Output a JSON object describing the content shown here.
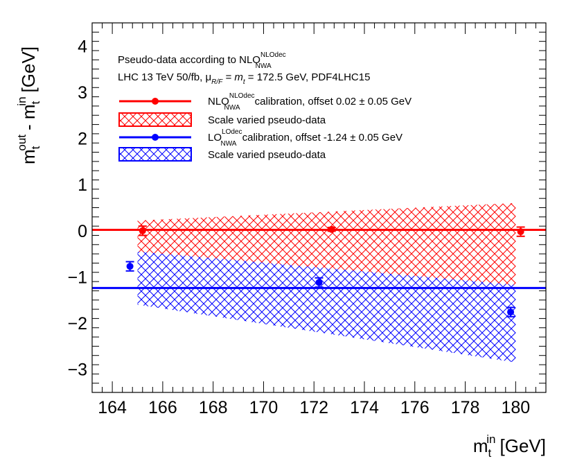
{
  "chart_data": {
    "type": "scatter",
    "title": "",
    "xlabel": {
      "main": "m",
      "sub": "t",
      "sup": "in",
      "unit": "[GeV]"
    },
    "ylabel": {
      "main": "m",
      "sub1": "t",
      "sup1": "out",
      "mid": "- m",
      "sub2": "t",
      "sup2": "in",
      "unit": "[GeV]"
    },
    "xlim": [
      163.2,
      181.2
    ],
    "ylim": [
      -3.5,
      4.5
    ],
    "x_ticks": [
      164,
      166,
      168,
      170,
      172,
      174,
      176,
      178,
      180
    ],
    "y_ticks": [
      -3,
      -2,
      -1,
      0,
      1,
      2,
      3,
      4
    ],
    "x_tick_labels": [
      "164",
      "166",
      "168",
      "170",
      "172",
      "174",
      "176",
      "178",
      "180"
    ],
    "y_tick_labels": [
      "−3",
      "−2",
      "−1",
      "0",
      "1",
      "2",
      "3",
      "4"
    ],
    "header": {
      "line1": "Pseudo-data according to NLO",
      "line1_sup": "NLOdec",
      "line1_sub": "NWA",
      "line2_a": "LHC 13 TeV 50/fb, μ",
      "line2_sub": "R/F",
      "line2_b": " = m",
      "line2_b_sub": "t",
      "line2_c": " = 172.5 GeV, PDF4LHC15"
    },
    "series": [
      {
        "name": "NLO calibration",
        "legend_main": "NLO",
        "legend_sup": "NLOdec",
        "legend_sub": "NWA",
        "legend_rest": " calibration, offset 0.02 ± 0.05 GeV",
        "color": "#ff0000",
        "offset": 0.02,
        "points": [
          {
            "x": 165.2,
            "y": 0.0,
            "err": 0.1
          },
          {
            "x": 172.7,
            "y": 0.03,
            "err": 0.04
          },
          {
            "x": 180.2,
            "y": -0.02,
            "err": 0.1
          }
        ]
      },
      {
        "name": "LO calibration",
        "legend_main": "LO",
        "legend_sup": "LOdec",
        "legend_sub": "NWA",
        "legend_rest": " calibration, offset -1.24 ± 0.05 GeV",
        "color": "#0000ff",
        "offset": -1.24,
        "points": [
          {
            "x": 164.7,
            "y": -0.77,
            "err": 0.1
          },
          {
            "x": 172.2,
            "y": -1.12,
            "err": 0.1
          },
          {
            "x": 179.8,
            "y": -1.76,
            "err": 0.1
          }
        ]
      }
    ],
    "bands": [
      {
        "name": "Scale varied pseudo-data",
        "color": "#ff0000",
        "x_range": [
          165,
          180
        ],
        "upper": [
          0.22,
          0.6
        ],
        "lower": [
          -0.45,
          -1.17
        ]
      },
      {
        "name": "Scale varied pseudo-data",
        "color": "#0000ff",
        "x_range": [
          165,
          180
        ],
        "upper": [
          -0.45,
          -1.17
        ],
        "lower": [
          -1.6,
          -2.85
        ]
      }
    ],
    "legend_placement": "top-left"
  }
}
